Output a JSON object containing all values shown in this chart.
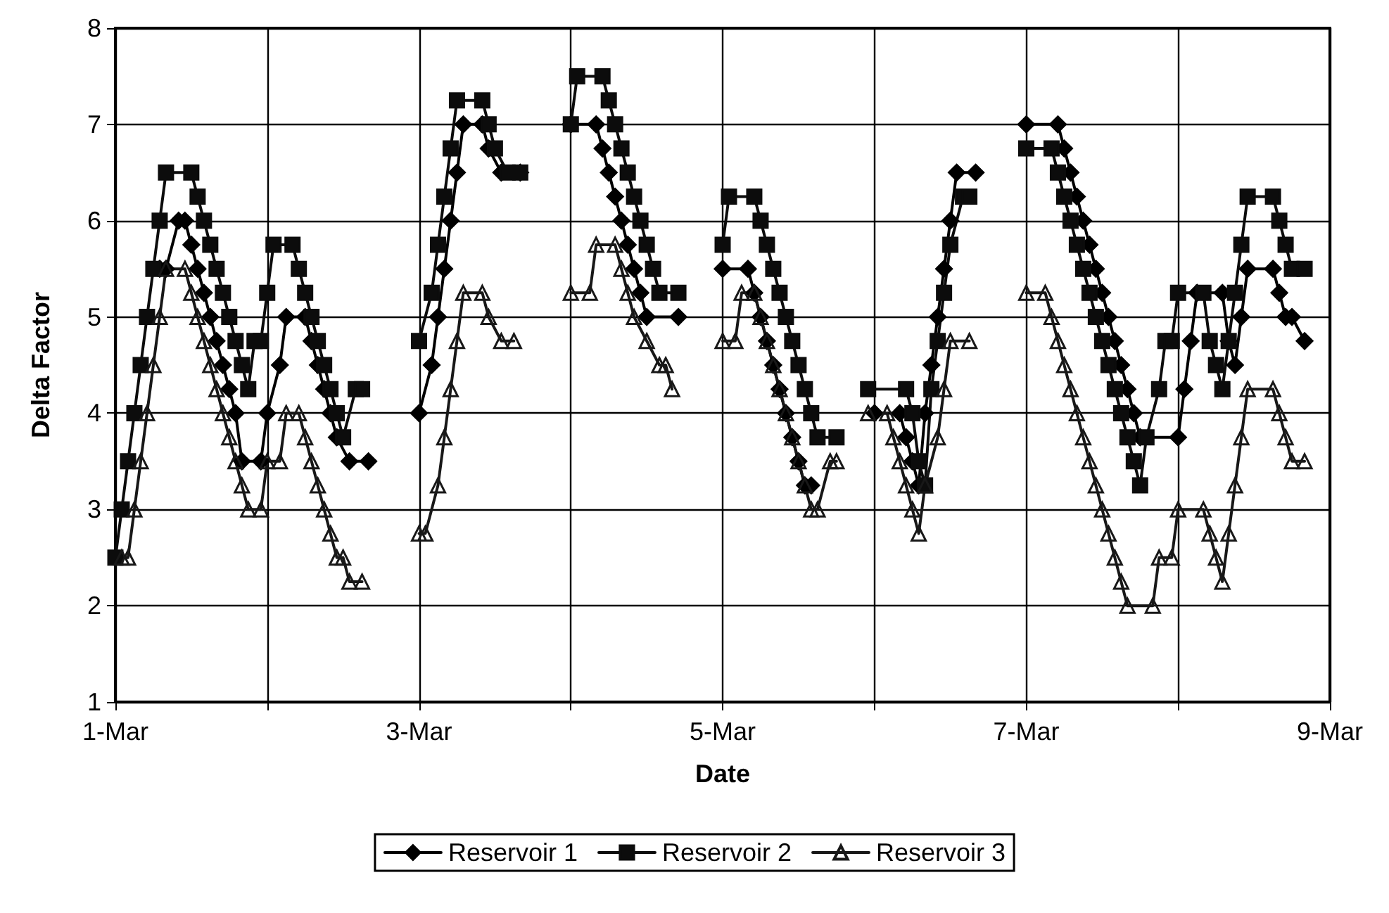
{
  "chart_data": {
    "type": "line",
    "xlabel": "Date",
    "ylabel": "Delta Factor",
    "xlim": [
      "--03-01",
      "--03-09"
    ],
    "xticks": [
      {
        "value": "--03-01",
        "label": "1-Mar"
      },
      {
        "value": "--03-02",
        "label": null
      },
      {
        "value": "--03-03",
        "label": "3-Mar"
      },
      {
        "value": "--03-04",
        "label": null
      },
      {
        "value": "--03-05",
        "label": "5-Mar"
      },
      {
        "value": "--03-06",
        "label": null
      },
      {
        "value": "--03-07",
        "label": "7-Mar"
      },
      {
        "value": "--03-08",
        "label": null
      },
      {
        "value": "--03-09",
        "label": "9-Mar"
      }
    ],
    "ylim": [
      1,
      8
    ],
    "yticks": [
      1,
      2,
      3,
      4,
      5,
      6,
      7,
      8
    ],
    "grid": true,
    "legend": "bottom",
    "series": [
      {
        "name": "Reservoir 1",
        "color": "#000000",
        "marker": "diamond",
        "x": [
          "--03-01T07:00",
          "--03-01T08:00",
          "--03-01T10:00",
          "--03-01T11:00",
          "--03-01T12:00",
          "--03-01T13:00",
          "--03-01T14:00",
          "--03-01T15:00",
          "--03-01T16:00",
          "--03-01T17:00",
          "--03-01T18:00",
          "--03-01T19:00",
          "--03-01T20:00",
          "--03-01T23:00",
          "--03-02T00:00",
          "--03-02T02:00",
          "--03-02T03:00",
          "--03-02T06:00",
          "--03-02T07:00",
          "--03-02T08:00",
          "--03-02T09:00",
          "--03-02T10:00",
          "--03-02T11:00",
          "--03-02T13:00",
          "--03-02T16:00",
          "--03-02T20:00",
          "--03-03T00:00",
          "--03-03T02:00",
          "--03-03T03:00",
          "--03-03T04:00",
          "--03-03T05:00",
          "--03-03T06:00",
          "--03-03T07:00",
          "--03-03T10:00",
          "--03-03T11:00",
          "--03-03T13:00",
          "--03-03T16:00",
          "--03-03T20:00",
          "--03-04T00:00",
          "--03-04T04:00",
          "--03-04T05:00",
          "--03-04T06:00",
          "--03-04T07:00",
          "--03-04T08:00",
          "--03-04T09:00",
          "--03-04T10:00",
          "--03-04T11:00",
          "--03-04T12:00",
          "--03-04T17:00",
          "--03-04T20:00",
          "--03-05T00:00",
          "--03-05T04:00",
          "--03-05T05:00",
          "--03-05T06:00",
          "--03-05T07:00",
          "--03-05T08:00",
          "--03-05T09:00",
          "--03-05T10:00",
          "--03-05T11:00",
          "--03-05T12:00",
          "--03-05T13:00",
          "--03-05T14:00",
          "--03-05T20:00",
          "--03-06T00:00",
          "--03-06T04:00",
          "--03-06T05:00",
          "--03-06T06:00",
          "--03-06T07:00",
          "--03-06T08:00",
          "--03-06T09:00",
          "--03-06T10:00",
          "--03-06T11:00",
          "--03-06T12:00",
          "--03-06T13:00",
          "--03-06T16:00",
          "--03-06T20:00",
          "--03-07T00:00",
          "--03-07T05:00",
          "--03-07T06:00",
          "--03-07T07:00",
          "--03-07T08:00",
          "--03-07T09:00",
          "--03-07T10:00",
          "--03-07T11:00",
          "--03-07T12:00",
          "--03-07T13:00",
          "--03-07T14:00",
          "--03-07T15:00",
          "--03-07T16:00",
          "--03-07T17:00",
          "--03-07T18:00",
          "--03-08T00:00",
          "--03-08T01:00",
          "--03-08T02:00",
          "--03-08T03:00",
          "--03-08T07:00",
          "--03-08T08:00",
          "--03-08T09:00",
          "--03-08T10:00",
          "--03-08T11:00",
          "--03-08T15:00",
          "--03-08T16:00",
          "--03-08T17:00",
          "--03-08T18:00",
          "--03-08T20:00"
        ],
        "values": [
          5.5,
          5.5,
          6.0,
          6.0,
          5.75,
          5.5,
          5.25,
          5.0,
          4.75,
          4.5,
          4.25,
          4.0,
          3.5,
          3.5,
          4.0,
          4.5,
          5.0,
          5.0,
          4.75,
          4.5,
          4.25,
          4.0,
          3.75,
          3.5,
          3.5,
          null,
          4.0,
          4.5,
          5.0,
          5.5,
          6.0,
          6.5,
          7.0,
          7.0,
          6.75,
          6.5,
          6.5,
          null,
          7.0,
          7.0,
          6.75,
          6.5,
          6.25,
          6.0,
          5.75,
          5.5,
          5.25,
          5.0,
          5.0,
          null,
          5.5,
          5.5,
          5.25,
          5.0,
          4.75,
          4.5,
          4.25,
          4.0,
          3.75,
          3.5,
          3.25,
          3.25,
          null,
          4.0,
          4.0,
          3.75,
          3.5,
          3.25,
          4.0,
          4.5,
          5.0,
          5.5,
          6.0,
          6.5,
          6.5,
          null,
          7.0,
          7.0,
          6.75,
          6.5,
          6.25,
          6.0,
          5.75,
          5.5,
          5.25,
          5.0,
          4.75,
          4.5,
          4.25,
          4.0,
          3.75,
          3.75,
          4.25,
          4.75,
          5.25,
          5.25,
          4.75,
          4.5,
          5.0,
          5.5,
          5.5,
          5.25,
          5.0,
          5.0,
          4.75
        ]
      },
      {
        "name": "Reservoir 2",
        "color": "#0c0c0c",
        "marker": "square",
        "x": [
          "--03-01T00:00",
          "--03-01T01:00",
          "--03-01T02:00",
          "--03-01T03:00",
          "--03-01T04:00",
          "--03-01T05:00",
          "--03-01T06:00",
          "--03-01T07:00",
          "--03-01T08:00",
          "--03-01T12:00",
          "--03-01T13:00",
          "--03-01T14:00",
          "--03-01T15:00",
          "--03-01T16:00",
          "--03-01T17:00",
          "--03-01T18:00",
          "--03-01T19:00",
          "--03-01T20:00",
          "--03-01T21:00",
          "--03-01T22:00",
          "--03-01T23:00",
          "--03-02T00:00",
          "--03-02T01:00",
          "--03-02T04:00",
          "--03-02T05:00",
          "--03-02T06:00",
          "--03-02T07:00",
          "--03-02T08:00",
          "--03-02T09:00",
          "--03-02T10:00",
          "--03-02T11:00",
          "--03-02T12:00",
          "--03-02T14:00",
          "--03-02T15:00",
          "--03-02T20:00",
          "--03-03T00:00",
          "--03-03T02:00",
          "--03-03T03:00",
          "--03-03T04:00",
          "--03-03T05:00",
          "--03-03T06:00",
          "--03-03T10:00",
          "--03-03T11:00",
          "--03-03T12:00",
          "--03-03T14:00",
          "--03-03T16:00",
          "--03-03T20:00",
          "--03-04T00:00",
          "--03-04T01:00",
          "--03-04T05:00",
          "--03-04T06:00",
          "--03-04T07:00",
          "--03-04T08:00",
          "--03-04T09:00",
          "--03-04T10:00",
          "--03-04T11:00",
          "--03-04T12:00",
          "--03-04T13:00",
          "--03-04T14:00",
          "--03-04T17:00",
          "--03-04T20:00",
          "--03-05T00:00",
          "--03-05T01:00",
          "--03-05T05:00",
          "--03-05T06:00",
          "--03-05T07:00",
          "--03-05T08:00",
          "--03-05T09:00",
          "--03-05T10:00",
          "--03-05T11:00",
          "--03-05T12:00",
          "--03-05T13:00",
          "--03-05T14:00",
          "--03-05T15:00",
          "--03-05T18:00",
          "--03-05T20:00",
          "--03-05T23:00",
          "--03-06T05:00",
          "--03-06T06:00",
          "--03-06T07:00",
          "--03-06T08:00",
          "--03-06T09:00",
          "--03-06T10:00",
          "--03-06T11:00",
          "--03-06T12:00",
          "--03-06T14:00",
          "--03-06T15:00",
          "--03-06T20:00",
          "--03-07T00:00",
          "--03-07T04:00",
          "--03-07T05:00",
          "--03-07T06:00",
          "--03-07T07:00",
          "--03-07T08:00",
          "--03-07T09:00",
          "--03-07T10:00",
          "--03-07T11:00",
          "--03-07T12:00",
          "--03-07T13:00",
          "--03-07T14:00",
          "--03-07T15:00",
          "--03-07T16:00",
          "--03-07T17:00",
          "--03-07T18:00",
          "--03-07T19:00",
          "--03-07T21:00",
          "--03-07T22:00",
          "--03-07T23:00",
          "--03-08T00:00",
          "--03-08T04:00",
          "--03-08T05:00",
          "--03-08T06:00",
          "--03-08T07:00",
          "--03-08T08:00",
          "--03-08T09:00",
          "--03-08T10:00",
          "--03-08T11:00",
          "--03-08T15:00",
          "--03-08T16:00",
          "--03-08T17:00",
          "--03-08T18:00",
          "--03-08T20:00"
        ],
        "values": [
          2.5,
          3.0,
          3.5,
          4.0,
          4.5,
          5.0,
          5.5,
          6.0,
          6.5,
          6.5,
          6.25,
          6.0,
          5.75,
          5.5,
          5.25,
          5.0,
          4.75,
          4.5,
          4.25,
          4.75,
          4.75,
          5.25,
          5.75,
          5.75,
          5.5,
          5.25,
          5.0,
          4.75,
          4.5,
          4.25,
          4.0,
          3.75,
          4.25,
          4.25,
          null,
          4.75,
          5.25,
          5.75,
          6.25,
          6.75,
          7.25,
          7.25,
          7.0,
          6.75,
          6.5,
          6.5,
          null,
          7.0,
          7.5,
          7.5,
          7.25,
          7.0,
          6.75,
          6.5,
          6.25,
          6.0,
          5.75,
          5.5,
          5.25,
          5.25,
          null,
          5.75,
          6.25,
          6.25,
          6.0,
          5.75,
          5.5,
          5.25,
          5.0,
          4.75,
          4.5,
          4.25,
          4.0,
          3.75,
          3.75,
          null,
          4.25,
          4.25,
          4.0,
          3.5,
          3.25,
          4.25,
          4.75,
          5.25,
          5.75,
          6.25,
          6.25,
          null,
          6.75,
          6.75,
          6.5,
          6.25,
          6.0,
          5.75,
          5.5,
          5.25,
          5.0,
          4.75,
          4.5,
          4.25,
          4.0,
          3.75,
          3.5,
          3.25,
          3.75,
          4.25,
          4.75,
          4.75,
          5.25,
          5.25,
          4.75,
          4.5,
          4.25,
          4.75,
          5.25,
          5.75,
          6.25,
          6.25,
          6.0,
          5.75,
          5.5,
          5.5
        ]
      },
      {
        "name": "Reservoir 3",
        "color": "#181818",
        "marker": "triangle",
        "x": [
          "--03-01T01:00",
          "--03-01T02:00",
          "--03-01T03:00",
          "--03-01T04:00",
          "--03-01T05:00",
          "--03-01T06:00",
          "--03-01T07:00",
          "--03-01T08:00",
          "--03-01T11:00",
          "--03-01T12:00",
          "--03-01T13:00",
          "--03-01T14:00",
          "--03-01T15:00",
          "--03-01T16:00",
          "--03-01T17:00",
          "--03-01T18:00",
          "--03-01T19:00",
          "--03-01T20:00",
          "--03-01T21:00",
          "--03-01T23:00",
          "--03-02T00:00",
          "--03-02T02:00",
          "--03-02T03:00",
          "--03-02T05:00",
          "--03-02T06:00",
          "--03-02T07:00",
          "--03-02T08:00",
          "--03-02T09:00",
          "--03-02T10:00",
          "--03-02T11:00",
          "--03-02T12:00",
          "--03-02T13:00",
          "--03-02T15:00",
          "--03-02T20:00",
          "--03-03T00:00",
          "--03-03T01:00",
          "--03-03T03:00",
          "--03-03T04:00",
          "--03-03T05:00",
          "--03-03T06:00",
          "--03-03T07:00",
          "--03-03T10:00",
          "--03-03T11:00",
          "--03-03T13:00",
          "--03-03T15:00",
          "--03-03T20:00",
          "--03-04T00:00",
          "--03-04T03:00",
          "--03-04T04:00",
          "--03-04T07:00",
          "--03-04T08:00",
          "--03-04T09:00",
          "--03-04T10:00",
          "--03-04T12:00",
          "--03-04T14:00",
          "--03-04T15:00",
          "--03-04T16:00",
          "--03-04T20:00",
          "--03-05T00:00",
          "--03-05T02:00",
          "--03-05T03:00",
          "--03-05T05:00",
          "--03-05T06:00",
          "--03-05T07:00",
          "--03-05T08:00",
          "--03-05T09:00",
          "--03-05T10:00",
          "--03-05T11:00",
          "--03-05T12:00",
          "--03-05T13:00",
          "--03-05T14:00",
          "--03-05T15:00",
          "--03-05T17:00",
          "--03-05T18:00",
          "--03-05T20:00",
          "--03-05T23:00",
          "--03-06T02:00",
          "--03-06T03:00",
          "--03-06T04:00",
          "--03-06T05:00",
          "--03-06T06:00",
          "--03-06T07:00",
          "--03-06T08:00",
          "--03-06T10:00",
          "--03-06T11:00",
          "--03-06T12:00",
          "--03-06T15:00",
          "--03-06T20:00",
          "--03-07T00:00",
          "--03-07T03:00",
          "--03-07T04:00",
          "--03-07T05:00",
          "--03-07T06:00",
          "--03-07T07:00",
          "--03-07T08:00",
          "--03-07T09:00",
          "--03-07T10:00",
          "--03-07T11:00",
          "--03-07T12:00",
          "--03-07T13:00",
          "--03-07T14:00",
          "--03-07T15:00",
          "--03-07T16:00",
          "--03-07T20:00",
          "--03-07T21:00",
          "--03-07T23:00",
          "--03-08T00:00",
          "--03-08T04:00",
          "--03-08T05:00",
          "--03-08T06:00",
          "--03-08T07:00",
          "--03-08T08:00",
          "--03-08T09:00",
          "--03-08T10:00",
          "--03-08T11:00",
          "--03-08T15:00",
          "--03-08T16:00",
          "--03-08T17:00",
          "--03-08T18:00",
          "--03-08T20:00"
        ],
        "values": [
          2.5,
          2.5,
          3.0,
          3.5,
          4.0,
          4.5,
          5.0,
          5.5,
          5.5,
          5.25,
          5.0,
          4.75,
          4.5,
          4.25,
          4.0,
          3.75,
          3.5,
          3.25,
          3.0,
          3.0,
          3.5,
          3.5,
          4.0,
          4.0,
          3.75,
          3.5,
          3.25,
          3.0,
          2.75,
          2.5,
          2.5,
          2.25,
          2.25,
          null,
          2.75,
          2.75,
          3.25,
          3.75,
          4.25,
          4.75,
          5.25,
          5.25,
          5.0,
          4.75,
          4.75,
          null,
          5.25,
          5.25,
          5.75,
          5.75,
          5.5,
          5.25,
          5.0,
          4.75,
          4.5,
          4.5,
          4.25,
          null,
          4.75,
          4.75,
          5.25,
          5.25,
          5.0,
          4.75,
          4.5,
          4.25,
          4.0,
          3.75,
          3.5,
          3.25,
          3.0,
          3.0,
          3.5,
          3.5,
          null,
          4.0,
          4.0,
          3.75,
          3.5,
          3.25,
          3.0,
          2.75,
          3.25,
          3.75,
          4.25,
          4.75,
          4.75,
          null,
          5.25,
          5.25,
          5.0,
          4.75,
          4.5,
          4.25,
          4.0,
          3.75,
          3.5,
          3.25,
          3.0,
          2.75,
          2.5,
          2.25,
          2.0,
          2.0,
          2.5,
          2.5,
          3.0,
          3.0,
          2.75,
          2.5,
          2.25,
          2.75,
          3.25,
          3.75,
          4.25,
          4.25,
          4.0,
          3.75,
          3.5,
          3.5
        ]
      }
    ]
  }
}
